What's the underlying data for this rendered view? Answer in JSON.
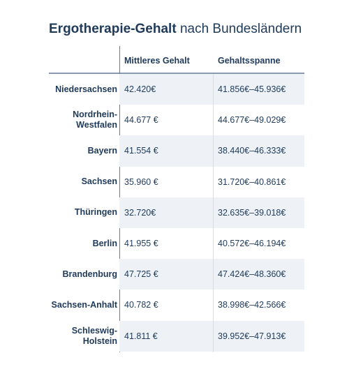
{
  "title": {
    "bold": "Ergotherapie-Gehalt",
    "rest": "nach Bundesländern"
  },
  "table": {
    "headers": {
      "state": "",
      "median": "Mittleres Gehalt",
      "range": "Gehaltsspanne"
    },
    "rows": [
      {
        "state": "Niedersachsen",
        "median": "42.420€",
        "range": "41.856€–45.936€"
      },
      {
        "state": "Nordrhein-Westfalen",
        "median": "44.677 €",
        "range": "44.677€–49.029€"
      },
      {
        "state": "Bayern",
        "median": "41.554 €",
        "range": "38.440€–46.333€"
      },
      {
        "state": "Sachsen",
        "median": "35.960 €",
        "range": "31.720€–40.861€"
      },
      {
        "state": "Thüringen",
        "median": "32.720€",
        "range": "32.635€–39.018€"
      },
      {
        "state": "Berlin",
        "median": "41.955 €",
        "range": "40.572€–46.194€"
      },
      {
        "state": "Brandenburg",
        "median": "47.725 €",
        "range": "47.424€–48.360€"
      },
      {
        "state": "Sachsen-Anhalt",
        "median": "40.782 €",
        "range": "38.998€–42.566€"
      },
      {
        "state": "Schleswig-Holstein",
        "median": "41.811 €",
        "range": "39.952€–47.913€"
      }
    ]
  }
}
